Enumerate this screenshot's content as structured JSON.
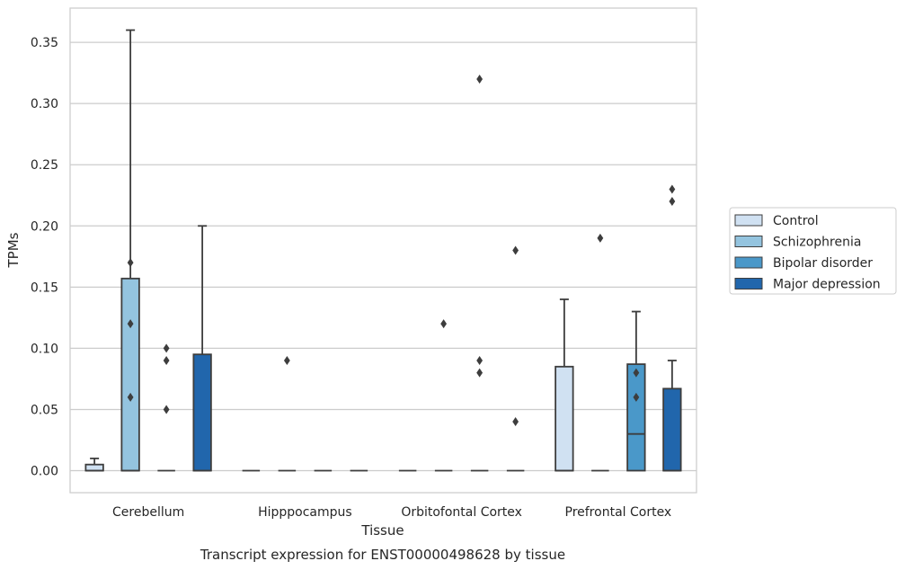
{
  "chart_data": {
    "type": "box",
    "title": "",
    "xlabel": "Tissue",
    "ylabel": "TPMs",
    "caption": "Transcript expression for ENST00000498628 by tissue",
    "categories": [
      "Cerebellum",
      "Hipppocampus",
      "Orbitofontal Cortex",
      "Prefrontal Cortex"
    ],
    "ylim": [
      -0.018,
      0.378
    ],
    "yticks": [
      "0.00",
      "0.05",
      "0.10",
      "0.15",
      "0.20",
      "0.25",
      "0.30",
      "0.35"
    ],
    "grid": "horizontal",
    "legend_position": "right",
    "colors": [
      "#d0e1f2",
      "#94c4df",
      "#4a98c9",
      "#2166ac"
    ],
    "series": [
      {
        "name": "Control",
        "boxes": [
          {
            "q1": 0.0,
            "median": 0.0,
            "q3": 0.005,
            "whisker_low": 0.0,
            "whisker_high": 0.01,
            "outliers": []
          },
          {
            "q1": 0.0,
            "median": 0.0,
            "q3": 0.0,
            "whisker_low": 0.0,
            "whisker_high": 0.0,
            "outliers": []
          },
          {
            "q1": 0.0,
            "median": 0.0,
            "q3": 0.0,
            "whisker_low": 0.0,
            "whisker_high": 0.0,
            "outliers": []
          },
          {
            "q1": 0.0,
            "median": 0.0,
            "q3": 0.085,
            "whisker_low": 0.0,
            "whisker_high": 0.14,
            "outliers": []
          }
        ]
      },
      {
        "name": "Schizophrenia",
        "boxes": [
          {
            "q1": 0.0,
            "median": 0.0,
            "q3": 0.157,
            "whisker_low": 0.0,
            "whisker_high": 0.36,
            "outliers": [
              0.17,
              0.12,
              0.06
            ]
          },
          {
            "q1": 0.0,
            "median": 0.0,
            "q3": 0.0,
            "whisker_low": 0.0,
            "whisker_high": 0.0,
            "outliers": [
              0.09
            ]
          },
          {
            "q1": 0.0,
            "median": 0.0,
            "q3": 0.0,
            "whisker_low": 0.0,
            "whisker_high": 0.0,
            "outliers": [
              0.12
            ]
          },
          {
            "q1": 0.0,
            "median": 0.0,
            "q3": 0.0,
            "whisker_low": 0.0,
            "whisker_high": 0.0,
            "outliers": [
              0.19
            ]
          }
        ]
      },
      {
        "name": "Bipolar disorder",
        "boxes": [
          {
            "q1": 0.0,
            "median": 0.0,
            "q3": 0.0,
            "whisker_low": 0.0,
            "whisker_high": 0.0,
            "outliers": [
              0.1,
              0.09,
              0.05
            ]
          },
          {
            "q1": 0.0,
            "median": 0.0,
            "q3": 0.0,
            "whisker_low": 0.0,
            "whisker_high": 0.0,
            "outliers": []
          },
          {
            "q1": 0.0,
            "median": 0.0,
            "q3": 0.0,
            "whisker_low": 0.0,
            "whisker_high": 0.0,
            "outliers": [
              0.32,
              0.08,
              0.09
            ]
          },
          {
            "q1": 0.0,
            "median": 0.03,
            "q3": 0.087,
            "whisker_low": 0.0,
            "whisker_high": 0.13,
            "outliers": [
              0.08,
              0.06
            ]
          }
        ]
      },
      {
        "name": "Major depression",
        "boxes": [
          {
            "q1": 0.0,
            "median": 0.0,
            "q3": 0.095,
            "whisker_low": 0.0,
            "whisker_high": 0.2,
            "outliers": []
          },
          {
            "q1": 0.0,
            "median": 0.0,
            "q3": 0.0,
            "whisker_low": 0.0,
            "whisker_high": 0.0,
            "outliers": []
          },
          {
            "q1": 0.0,
            "median": 0.0,
            "q3": 0.0,
            "whisker_low": 0.0,
            "whisker_high": 0.0,
            "outliers": [
              0.18,
              0.04
            ]
          },
          {
            "q1": 0.0,
            "median": 0.0,
            "q3": 0.067,
            "whisker_low": 0.0,
            "whisker_high": 0.09,
            "outliers": [
              0.23,
              0.22
            ]
          }
        ]
      }
    ]
  }
}
